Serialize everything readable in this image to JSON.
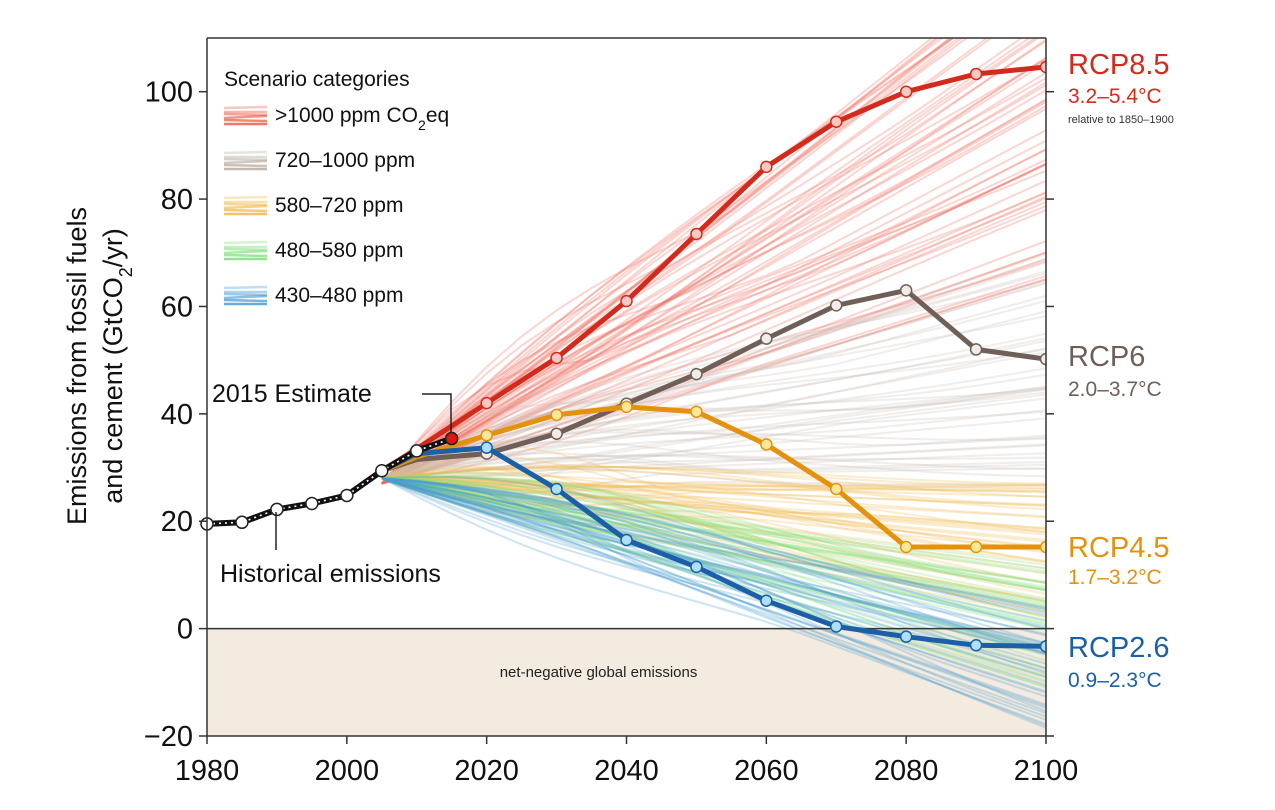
{
  "chart_data": {
    "type": "line",
    "title": "",
    "ylabel_line1": "Emissions from fossil fuels",
    "ylabel_line2_pre": "and cement (GtCO",
    "ylabel_line2_sub": "2",
    "ylabel_line2_post": "/yr)",
    "xlim": [
      1980,
      2100
    ],
    "ylim": [
      -20,
      110
    ],
    "grid": false,
    "x_ticks": [
      1980,
      2000,
      2020,
      2040,
      2060,
      2080,
      2100
    ],
    "x_tick_labels": [
      "1980",
      "2000",
      "2020",
      "2040",
      "2060",
      "2080",
      "2100"
    ],
    "y_ticks": [
      -20,
      0,
      20,
      40,
      60,
      80,
      100
    ],
    "y_tick_labels": [
      "−20",
      "0",
      "20",
      "40",
      "60",
      "80",
      "100"
    ],
    "negative_region": {
      "y_from": -20,
      "y_to": 0,
      "label": "net-negative global emissions",
      "color": "#f3ebdf"
    },
    "legend": {
      "title": "Scenario categories",
      "placement": "top-left",
      "entries": [
        {
          "label_pre": ">1000 ppm CO",
          "label_sub": "2",
          "label_post": "eq",
          "color": "#e8604f"
        },
        {
          "label_pre": "720–1000 ppm",
          "label_sub": "",
          "label_post": "",
          "color": "#b8aca2"
        },
        {
          "label_pre": "580–720 ppm",
          "label_sub": "",
          "label_post": "",
          "color": "#f0b84a"
        },
        {
          "label_pre": "480–580 ppm",
          "label_sub": "",
          "label_post": "",
          "color": "#7fe07a"
        },
        {
          "label_pre": "430–480 ppm",
          "label_sub": "",
          "label_post": "",
          "color": "#4a9fd4"
        }
      ]
    },
    "historical": {
      "name": "Historical emissions",
      "x": [
        1980,
        1985,
        1990,
        1995,
        2000,
        2005,
        2010,
        2015
      ],
      "y": [
        19.5,
        19.8,
        22.2,
        23.3,
        24.8,
        29.4,
        33.1,
        35.4
      ],
      "estimate_label": "2015 Estimate",
      "estimate_point": {
        "x": 2015,
        "y": 35.4
      },
      "estimate_color": "#e3140f"
    },
    "series": [
      {
        "name": "RCP8.5",
        "temp": "3.2–5.4°C",
        "note": "relative to 1850–1900",
        "color": "#d42a1c",
        "fill": "#f8c8c2",
        "x": [
          2005,
          2010,
          2020,
          2030,
          2040,
          2050,
          2060,
          2070,
          2080,
          2090,
          2100
        ],
        "y": [
          29.4,
          33.5,
          42,
          50.4,
          61,
          73.5,
          86,
          94.4,
          100,
          103.3,
          104.6
        ]
      },
      {
        "name": "RCP6",
        "temp": "2.0–3.7°C",
        "note": "",
        "color": "#6e6058",
        "fill": "#f1ece8",
        "x": [
          2005,
          2010,
          2020,
          2030,
          2040,
          2050,
          2060,
          2070,
          2080,
          2090,
          2100
        ],
        "y": [
          29.4,
          31.5,
          32.6,
          36.3,
          41.9,
          47.4,
          54,
          60.2,
          63,
          52,
          50.2
        ]
      },
      {
        "name": "RCP4.5",
        "temp": "1.7–3.2°C",
        "note": "",
        "color": "#e4920e",
        "fill": "#fbe79a",
        "x": [
          2005,
          2010,
          2020,
          2030,
          2040,
          2050,
          2060,
          2070,
          2080,
          2090,
          2100
        ],
        "y": [
          29.4,
          32.0,
          36,
          39.8,
          41.3,
          40.4,
          34.3,
          26,
          15.2,
          15.2,
          15.2
        ]
      },
      {
        "name": "RCP2.6",
        "temp": "0.9–2.3°C",
        "note": "",
        "color": "#1a5fa8",
        "fill": "#aee0f8",
        "x": [
          2005,
          2010,
          2020,
          2030,
          2040,
          2050,
          2060,
          2070,
          2080,
          2090,
          2100
        ],
        "y": [
          29.4,
          32.6,
          33.7,
          26,
          16.5,
          11.5,
          5.2,
          0.4,
          -1.5,
          -3.1,
          -3.3
        ]
      }
    ],
    "scenario_bands": [
      {
        "category": ">1000 ppm CO2eq",
        "color": "#ec6a5c",
        "start": [
          2005,
          27
        ],
        "end_range_2100": [
          65,
          130
        ],
        "count": 60
      },
      {
        "category": "720–1000 ppm",
        "color": "#c8beb6",
        "start": [
          2005,
          28
        ],
        "end_range_2100": [
          25,
          70
        ],
        "count": 45
      },
      {
        "category": "580–720 ppm",
        "color": "#f2bc52",
        "start": [
          2005,
          28
        ],
        "end_range_2100": [
          2,
          28
        ],
        "count": 45
      },
      {
        "category": "480–580 ppm",
        "color": "#86e27c",
        "start": [
          2005,
          28
        ],
        "end_range_2100": [
          -14,
          12
        ],
        "count": 40
      },
      {
        "category": "430–480 ppm",
        "color": "#4d9fd2",
        "start": [
          2005,
          28
        ],
        "end_range_2100": [
          -19,
          4
        ],
        "count": 40
      }
    ]
  }
}
